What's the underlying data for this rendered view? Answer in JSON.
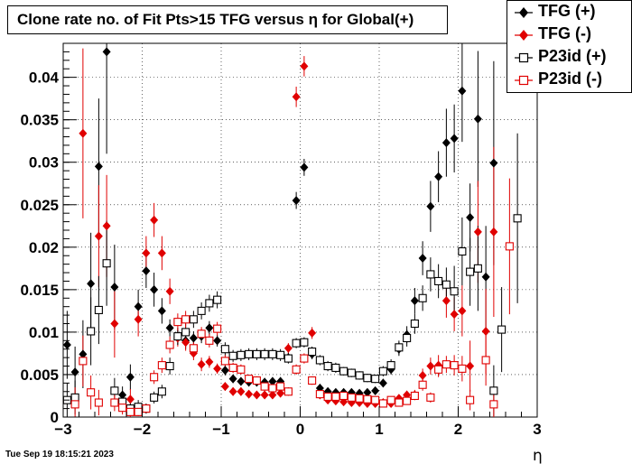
{
  "title": "Clone rate no. of Fit Pts>15 TFG versus η for Global(+)",
  "timestamp": "Tue Sep 19 18:15:21 2023",
  "legend": [
    {
      "label": "TFG (+)",
      "color": "#000000",
      "marker": "filled-diamond"
    },
    {
      "label": "TFG (-)",
      "color": "#e00000",
      "marker": "filled-diamond"
    },
    {
      "label": "P23id (+)",
      "color": "#000000",
      "marker": "open-square"
    },
    {
      "label": "P23id (-)",
      "color": "#e00000",
      "marker": "open-square"
    }
  ],
  "chart_data": {
    "type": "scatter",
    "title": "Clone rate no. of Fit Pts>15 TFG versus η for Global(+)",
    "xlabel": "η",
    "ylabel": "",
    "xlim": [
      -3,
      3
    ],
    "ylim": [
      0,
      0.044
    ],
    "x_ticks": [
      "−3",
      "−2",
      "−1",
      "0",
      "1",
      "2",
      "3"
    ],
    "y_ticks": [
      "0",
      "0.005",
      "0.01",
      "0.015",
      "0.02",
      "0.025",
      "0.03",
      "0.035",
      "0.04"
    ],
    "grid": true,
    "legend_position": "top-right",
    "series": [
      {
        "name": "TFG (+)",
        "color": "#000000",
        "marker": "filled-diamond",
        "points": [
          [
            -2.95,
            0.0085,
            0.004
          ],
          [
            -2.85,
            0.0053,
            0.003
          ],
          [
            -2.75,
            0.0074,
            0.004
          ],
          [
            -2.65,
            0.0157,
            0.006
          ],
          [
            -2.55,
            0.0295,
            0.008
          ],
          [
            -2.45,
            0.043,
            0.012
          ],
          [
            -2.35,
            0.0153,
            0.005
          ],
          [
            -2.25,
            0.0026,
            0.001
          ],
          [
            -2.15,
            0.0047,
            0.0015
          ],
          [
            -2.05,
            0.013,
            0.002
          ],
          [
            -1.95,
            0.0172,
            0.002
          ],
          [
            -1.85,
            0.015,
            0.002
          ],
          [
            -1.75,
            0.0125,
            0.0015
          ],
          [
            -1.65,
            0.0105,
            0.001
          ],
          [
            -1.55,
            0.0095,
            0.001
          ],
          [
            -1.45,
            0.009,
            0.001
          ],
          [
            -1.35,
            0.0093,
            0.0008
          ],
          [
            -1.25,
            0.0095,
            0.0008
          ],
          [
            -1.15,
            0.0105,
            0.0008
          ],
          [
            -1.05,
            0.009,
            0.0007
          ],
          [
            -0.95,
            0.0055,
            0.0006
          ],
          [
            -0.85,
            0.0045,
            0.0005
          ],
          [
            -0.75,
            0.0042,
            0.0005
          ],
          [
            -0.65,
            0.0041,
            0.0005
          ],
          [
            -0.55,
            0.0041,
            0.0005
          ],
          [
            -0.45,
            0.0041,
            0.0005
          ],
          [
            -0.35,
            0.0042,
            0.0005
          ],
          [
            -0.25,
            0.0042,
            0.0005
          ],
          [
            -0.15,
            0.007,
            0.0006
          ],
          [
            -0.05,
            0.0255,
            0.001
          ],
          [
            0.05,
            0.0294,
            0.001
          ],
          [
            0.15,
            0.0074,
            0.0006
          ],
          [
            0.25,
            0.0034,
            0.0005
          ],
          [
            0.35,
            0.003,
            0.0004
          ],
          [
            0.45,
            0.0029,
            0.0004
          ],
          [
            0.55,
            0.0029,
            0.0004
          ],
          [
            0.65,
            0.0029,
            0.0004
          ],
          [
            0.75,
            0.0028,
            0.0004
          ],
          [
            0.85,
            0.0029,
            0.0004
          ],
          [
            0.95,
            0.0031,
            0.0004
          ],
          [
            1.05,
            0.004,
            0.0005
          ],
          [
            1.15,
            0.0056,
            0.0006
          ],
          [
            1.25,
            0.008,
            0.0008
          ],
          [
            1.35,
            0.0097,
            0.001
          ],
          [
            1.45,
            0.0137,
            0.0015
          ],
          [
            1.55,
            0.0187,
            0.002
          ],
          [
            1.65,
            0.0248,
            0.003
          ],
          [
            1.75,
            0.0283,
            0.003
          ],
          [
            1.85,
            0.0323,
            0.004
          ],
          [
            1.95,
            0.0328,
            0.004
          ],
          [
            2.05,
            0.0384,
            0.006
          ],
          [
            2.15,
            0.0235,
            0.004
          ],
          [
            2.25,
            0.0351,
            0.008
          ],
          [
            2.35,
            0.0165,
            0.006
          ],
          [
            2.45,
            0.0299,
            0.012
          ]
        ]
      },
      {
        "name": "TFG (-)",
        "color": "#e00000",
        "marker": "filled-diamond",
        "points": [
          [
            -2.75,
            0.0334,
            0.01
          ],
          [
            -2.55,
            0.0213,
            0.006
          ],
          [
            -2.45,
            0.0225,
            0.006
          ],
          [
            -2.35,
            0.011,
            0.004
          ],
          [
            -2.15,
            0.0021,
            0.0012
          ],
          [
            -2.05,
            0.0115,
            0.002
          ],
          [
            -1.95,
            0.0193,
            0.002
          ],
          [
            -1.85,
            0.0232,
            0.002
          ],
          [
            -1.75,
            0.0193,
            0.002
          ],
          [
            -1.65,
            0.0148,
            0.0015
          ],
          [
            -1.55,
            0.0093,
            0.001
          ],
          [
            -1.45,
            0.0088,
            0.001
          ],
          [
            -1.35,
            0.0075,
            0.0008
          ],
          [
            -1.25,
            0.0062,
            0.0008
          ],
          [
            -1.15,
            0.0065,
            0.0007
          ],
          [
            -1.05,
            0.0057,
            0.0006
          ],
          [
            -0.95,
            0.0036,
            0.0005
          ],
          [
            -0.85,
            0.003,
            0.0005
          ],
          [
            -0.75,
            0.003,
            0.0005
          ],
          [
            -0.65,
            0.0027,
            0.0004
          ],
          [
            -0.55,
            0.0026,
            0.0004
          ],
          [
            -0.45,
            0.0026,
            0.0004
          ],
          [
            -0.35,
            0.0026,
            0.0004
          ],
          [
            -0.25,
            0.0028,
            0.0004
          ],
          [
            -0.15,
            0.0081,
            0.0006
          ],
          [
            -0.05,
            0.0377,
            0.0012
          ],
          [
            0.05,
            0.0413,
            0.0012
          ],
          [
            0.15,
            0.0099,
            0.0007
          ],
          [
            0.25,
            0.0026,
            0.0004
          ],
          [
            0.35,
            0.002,
            0.0004
          ],
          [
            0.45,
            0.0019,
            0.0003
          ],
          [
            0.55,
            0.0018,
            0.0003
          ],
          [
            0.65,
            0.0017,
            0.0003
          ],
          [
            0.75,
            0.0017,
            0.0003
          ],
          [
            0.85,
            0.0016,
            0.0003
          ],
          [
            0.95,
            0.0016,
            0.0003
          ],
          [
            1.05,
            0.0017,
            0.0003
          ],
          [
            1.15,
            0.0016,
            0.0003
          ],
          [
            1.25,
            0.0022,
            0.0004
          ],
          [
            1.35,
            0.0026,
            0.0005
          ],
          [
            1.45,
            0.0026,
            0.0006
          ],
          [
            1.55,
            0.0049,
            0.0008
          ],
          [
            1.65,
            0.006,
            0.001
          ],
          [
            1.75,
            0.0061,
            0.0012
          ],
          [
            1.85,
            0.0137,
            0.002
          ],
          [
            1.95,
            0.0121,
            0.002
          ],
          [
            2.05,
            0.0125,
            0.003
          ],
          [
            2.15,
            0.006,
            0.003
          ],
          [
            2.25,
            0.0218,
            0.006
          ],
          [
            2.35,
            0.0101,
            0.005
          ],
          [
            2.45,
            0.0218,
            0.01
          ]
        ]
      },
      {
        "name": "P23id (+)",
        "color": "#000000",
        "marker": "open-square",
        "points": [
          [
            -2.95,
            0.002,
            0.002
          ],
          [
            -2.85,
            0.0023,
            0.002
          ],
          [
            -2.65,
            0.0101,
            0.004
          ],
          [
            -2.55,
            0.0126,
            0.004
          ],
          [
            -2.45,
            0.0181,
            0.005
          ],
          [
            -2.35,
            0.0031,
            0.0015
          ],
          [
            -2.25,
            0.0018,
            0.001
          ],
          [
            -2.15,
            0.001,
            0.0008
          ],
          [
            -2.05,
            0.0012,
            0.0008
          ],
          [
            -1.95,
            0.001,
            0.0006
          ],
          [
            -1.85,
            0.0023,
            0.0007
          ],
          [
            -1.75,
            0.003,
            0.0008
          ],
          [
            -1.65,
            0.006,
            0.001
          ],
          [
            -1.55,
            0.0095,
            0.001
          ],
          [
            -1.45,
            0.01,
            0.001
          ],
          [
            -1.35,
            0.0115,
            0.001
          ],
          [
            -1.25,
            0.0125,
            0.001
          ],
          [
            -1.15,
            0.0134,
            0.001
          ],
          [
            -1.05,
            0.0138,
            0.001
          ],
          [
            -0.95,
            0.008,
            0.0008
          ],
          [
            -0.85,
            0.0072,
            0.0007
          ],
          [
            -0.75,
            0.0073,
            0.0007
          ],
          [
            -0.65,
            0.0074,
            0.0007
          ],
          [
            -0.55,
            0.0074,
            0.0007
          ],
          [
            -0.45,
            0.0074,
            0.0007
          ],
          [
            -0.35,
            0.0074,
            0.0007
          ],
          [
            -0.25,
            0.0073,
            0.0007
          ],
          [
            -0.15,
            0.0069,
            0.0006
          ],
          [
            -0.05,
            0.0087,
            0.0006
          ],
          [
            0.05,
            0.0088,
            0.0006
          ],
          [
            0.15,
            0.0077,
            0.0006
          ],
          [
            0.25,
            0.0067,
            0.0006
          ],
          [
            0.35,
            0.006,
            0.0006
          ],
          [
            0.45,
            0.0058,
            0.0006
          ],
          [
            0.55,
            0.0054,
            0.0005
          ],
          [
            0.65,
            0.0052,
            0.0005
          ],
          [
            0.75,
            0.0049,
            0.0005
          ],
          [
            0.85,
            0.0046,
            0.0005
          ],
          [
            0.95,
            0.0045,
            0.0005
          ],
          [
            1.05,
            0.0054,
            0.0006
          ],
          [
            1.15,
            0.0061,
            0.0007
          ],
          [
            1.25,
            0.0082,
            0.0008
          ],
          [
            1.35,
            0.0093,
            0.001
          ],
          [
            1.45,
            0.011,
            0.0012
          ],
          [
            1.55,
            0.014,
            0.0015
          ],
          [
            1.65,
            0.0168,
            0.002
          ],
          [
            1.75,
            0.016,
            0.002
          ],
          [
            1.85,
            0.0156,
            0.002
          ],
          [
            1.95,
            0.0148,
            0.003
          ],
          [
            2.05,
            0.0195,
            0.004
          ],
          [
            2.15,
            0.0171,
            0.004
          ],
          [
            2.25,
            0.0175,
            0.005
          ],
          [
            2.45,
            0.0031,
            0.003
          ],
          [
            2.55,
            0.0103,
            0.005
          ],
          [
            2.75,
            0.0234,
            0.01
          ]
        ]
      },
      {
        "name": "P23id (-)",
        "color": "#e00000",
        "marker": "open-square",
        "points": [
          [
            -2.85,
            0.0015,
            0.002
          ],
          [
            -2.75,
            0.0066,
            0.003
          ],
          [
            -2.65,
            0.0029,
            0.002
          ],
          [
            -2.55,
            0.0017,
            0.0015
          ],
          [
            -2.35,
            0.0017,
            0.001
          ],
          [
            -2.25,
            0.0011,
            0.0008
          ],
          [
            -2.15,
            0.0006,
            0.0006
          ],
          [
            -2.05,
            0.0006,
            0.0005
          ],
          [
            -1.95,
            0.001,
            0.0005
          ],
          [
            -1.85,
            0.0047,
            0.0008
          ],
          [
            -1.75,
            0.0061,
            0.0009
          ],
          [
            -1.65,
            0.0085,
            0.001
          ],
          [
            -1.55,
            0.0112,
            0.001
          ],
          [
            -1.45,
            0.0115,
            0.001
          ],
          [
            -1.35,
            0.0081,
            0.0008
          ],
          [
            -1.25,
            0.0098,
            0.0008
          ],
          [
            -1.15,
            0.009,
            0.0008
          ],
          [
            -1.05,
            0.0104,
            0.0008
          ],
          [
            -0.95,
            0.0066,
            0.0007
          ],
          [
            -0.85,
            0.0058,
            0.0006
          ],
          [
            -0.75,
            0.0056,
            0.0006
          ],
          [
            -0.65,
            0.0045,
            0.0005
          ],
          [
            -0.55,
            0.0043,
            0.0005
          ],
          [
            -0.45,
            0.0036,
            0.0005
          ],
          [
            -0.35,
            0.0034,
            0.0005
          ],
          [
            -0.25,
            0.0036,
            0.0005
          ],
          [
            -0.15,
            0.003,
            0.0005
          ],
          [
            -0.05,
            0.0056,
            0.0006
          ],
          [
            0.05,
            0.0069,
            0.0006
          ],
          [
            0.15,
            0.0043,
            0.0005
          ],
          [
            0.25,
            0.0027,
            0.0004
          ],
          [
            0.35,
            0.0024,
            0.0004
          ],
          [
            0.45,
            0.0024,
            0.0004
          ],
          [
            0.55,
            0.0025,
            0.0004
          ],
          [
            0.65,
            0.0023,
            0.0004
          ],
          [
            0.75,
            0.0022,
            0.0004
          ],
          [
            0.85,
            0.0021,
            0.0004
          ],
          [
            0.95,
            0.002,
            0.0004
          ],
          [
            1.05,
            0.0016,
            0.0003
          ],
          [
            1.15,
            0.002,
            0.0004
          ],
          [
            1.25,
            0.0017,
            0.0004
          ],
          [
            1.35,
            0.0019,
            0.0004
          ],
          [
            1.45,
            0.0025,
            0.0005
          ],
          [
            1.55,
            0.0038,
            0.0007
          ],
          [
            1.65,
            0.0023,
            0.0006
          ],
          [
            1.75,
            0.0056,
            0.0009
          ],
          [
            1.85,
            0.0062,
            0.001
          ],
          [
            1.95,
            0.0061,
            0.0012
          ],
          [
            2.05,
            0.0057,
            0.0015
          ],
          [
            2.15,
            0.002,
            0.0012
          ],
          [
            2.35,
            0.0067,
            0.003
          ],
          [
            2.45,
            0.0015,
            0.0015
          ],
          [
            2.65,
            0.0201,
            0.008
          ]
        ]
      }
    ]
  }
}
